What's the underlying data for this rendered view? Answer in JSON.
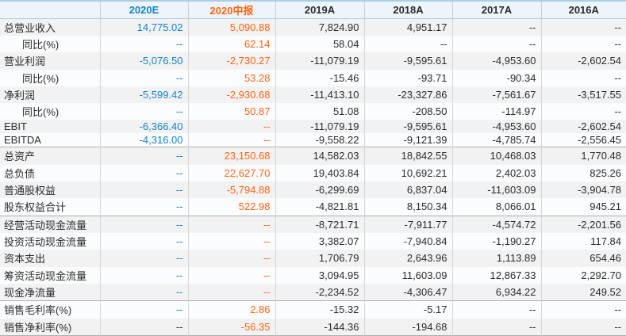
{
  "colors": {
    "accent_blue": "#1583C5",
    "accent_orange": "#FF6414",
    "text_dark": "#2B2B2B",
    "header_bg": "#EDF4FA",
    "header_border_blue": "#AECDE8",
    "section_divider_gray": "#A9ADB3",
    "stripe_row_bg": "#F2F2F2",
    "plain_row_bg": "#FBFCFE"
  },
  "table": {
    "corner_label": "",
    "columns": [
      {
        "label": "2020E",
        "tone": "blue"
      },
      {
        "label": "2020中报",
        "tone": "orange"
      },
      {
        "label": "2019A",
        "tone": "dark"
      },
      {
        "label": "2018A",
        "tone": "dark"
      },
      {
        "label": "2017A",
        "tone": "dark"
      },
      {
        "label": "2016A",
        "tone": "dark"
      }
    ],
    "empty_placeholder": "--",
    "rows": [
      {
        "label": "总营业收入",
        "indent": false,
        "values": [
          "14,775.02",
          "5,090.88",
          "7,824.90",
          "4,951.17",
          "--",
          "--"
        ]
      },
      {
        "label": "同比(%)",
        "indent": true,
        "values": [
          "--",
          "62.14",
          "58.04",
          "--",
          "--",
          "--"
        ]
      },
      {
        "label": "营业利润",
        "indent": false,
        "values": [
          "-5,076.50",
          "-2,730.27",
          "-11,079.19",
          "-9,595.61",
          "-4,953.60",
          "-2,602.54"
        ]
      },
      {
        "label": "同比(%)",
        "indent": true,
        "values": [
          "--",
          "53.28",
          "-15.46",
          "-93.71",
          "-90.34",
          "--"
        ]
      },
      {
        "label": "净利润",
        "indent": false,
        "values": [
          "-5,599.42",
          "-2,930.68",
          "-11,413.10",
          "-23,327.86",
          "-7,561.67",
          "-3,517.55"
        ]
      },
      {
        "label": "同比(%)",
        "indent": true,
        "values": [
          "--",
          "50.87",
          "51.08",
          "-208.50",
          "-114.97",
          "--"
        ]
      },
      {
        "label": "EBIT",
        "indent": false,
        "values": [
          "-6,366.40",
          "--",
          "-11,079.19",
          "-9,595.61",
          "-4,953.60",
          "-2,602.54"
        ]
      },
      {
        "label": "EBITDA",
        "indent": false,
        "values": [
          "-4,316.00",
          "--",
          "-9,558.22",
          "-9,121.39",
          "-4,785.74",
          "-2,556.45"
        ]
      },
      {
        "label": "总资产",
        "indent": false,
        "section_start": true,
        "values": [
          "--",
          "23,150.68",
          "14,582.03",
          "18,842.55",
          "10,468.03",
          "1,770.48"
        ]
      },
      {
        "label": "总负债",
        "indent": false,
        "values": [
          "--",
          "22,627.70",
          "19,403.84",
          "10,692.21",
          "2,402.03",
          "825.26"
        ]
      },
      {
        "label": "普通股权益",
        "indent": false,
        "values": [
          "--",
          "-5,794.88",
          "-6,299.69",
          "6,837.04",
          "-11,603.09",
          "-3,904.78"
        ]
      },
      {
        "label": "股东权益合计",
        "indent": false,
        "values": [
          "--",
          "522.98",
          "-4,821.81",
          "8,150.34",
          "8,066.01",
          "945.21"
        ]
      },
      {
        "label": "经营活动现金流量",
        "indent": false,
        "section_start": true,
        "values": [
          "--",
          "--",
          "-8,721.71",
          "-7,911.77",
          "-4,574.72",
          "-2,201.56"
        ]
      },
      {
        "label": "投资活动现金流量",
        "indent": false,
        "values": [
          "--",
          "--",
          "3,382.07",
          "-7,940.84",
          "-1,190.27",
          "117.84"
        ]
      },
      {
        "label": "资本支出",
        "indent": false,
        "values": [
          "--",
          "--",
          "1,706.79",
          "2,643.96",
          "1,113.89",
          "654.46"
        ]
      },
      {
        "label": "筹资活动现金流量",
        "indent": false,
        "values": [
          "--",
          "--",
          "3,094.95",
          "11,603.09",
          "12,867.33",
          "2,292.70"
        ]
      },
      {
        "label": "现金净流量",
        "indent": false,
        "values": [
          "--",
          "--",
          "-2,234.52",
          "-4,306.47",
          "6,934.22",
          "249.52"
        ]
      },
      {
        "label": "销售毛利率(%)",
        "indent": false,
        "section_start": true,
        "values": [
          "--",
          "2.86",
          "-15.32",
          "-5.17",
          "--",
          "--"
        ]
      },
      {
        "label": "销售净利率(%)",
        "indent": false,
        "values": [
          "--",
          "-56.35",
          "-144.36",
          "-194.68",
          "--",
          "--"
        ],
        "value_tone_overrides": {
          "0": "dark"
        }
      }
    ]
  }
}
